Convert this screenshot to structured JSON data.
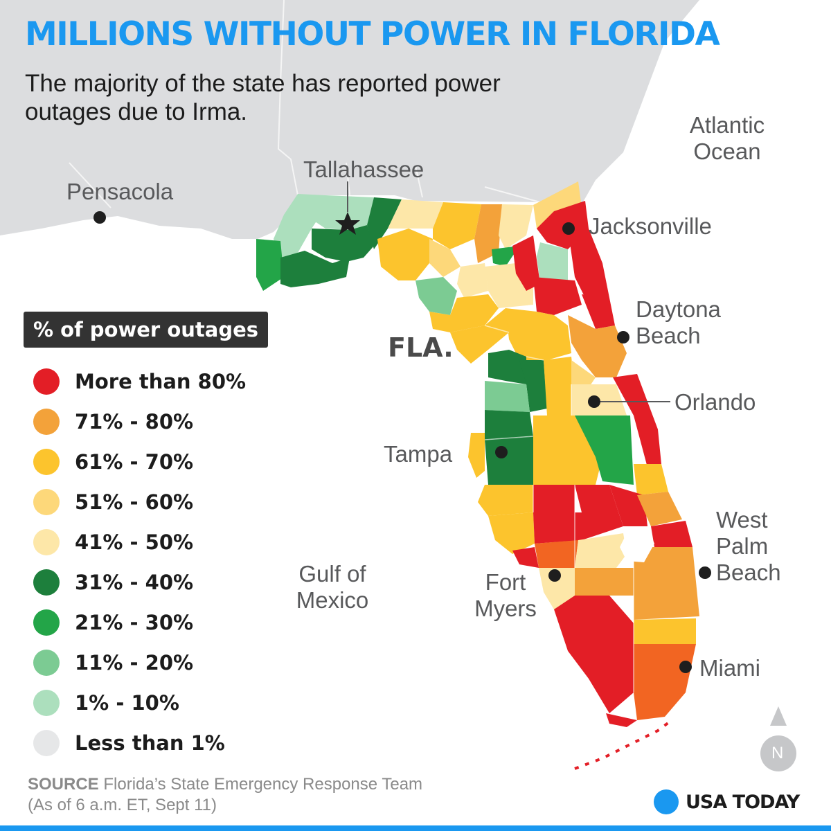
{
  "title": "MILLIONS WITHOUT POWER IN FLORIDA",
  "subtitle": "The majority of the state has reported power outages due to Irma.",
  "map_label": "FLA.",
  "places": {
    "atlantic_ocean": "Atlantic Ocean",
    "gulf_of_mexico": "Gulf of Mexico",
    "tallahassee": "Tallahassee",
    "pensacola": "Pensacola",
    "jacksonville": "Jacksonville",
    "daytona_beach": "Daytona Beach",
    "orlando": "Orlando",
    "tampa": "Tampa",
    "west_palm_beach": "West Palm Beach",
    "fort_myers": "Fort Myers",
    "miami": "Miami"
  },
  "legend": {
    "title": "% of power outages",
    "items": [
      {
        "label": "More than 80%",
        "color": "#e31e26"
      },
      {
        "label": "71% - 80%",
        "color": "#f3a23a"
      },
      {
        "label": "61% - 70%",
        "color": "#fcc42d"
      },
      {
        "label": "51% - 60%",
        "color": "#fdd87a"
      },
      {
        "label": "41% - 50%",
        "color": "#fde7a8"
      },
      {
        "label": "31% - 40%",
        "color": "#1d7f3c"
      },
      {
        "label": "21% - 30%",
        "color": "#23a548"
      },
      {
        "label": "11% - 20%",
        "color": "#7ccb93"
      },
      {
        "label": "1% - 10%",
        "color": "#acdfbd"
      },
      {
        "label": "Less than 1%",
        "color": "#e6e7e8"
      }
    ]
  },
  "compass": {
    "label": "N"
  },
  "source": {
    "keyword": "SOURCE",
    "text": "Florida’s State Emergency Response Team",
    "note": "(As of 6 a.m. ET, Sept 11)"
  },
  "brand": "USA TODAY",
  "colors": {
    "title": "#1a98f0",
    "land_outside": "#dcdddf",
    "water": "#ffffff",
    "miami_area": "#f26522",
    "brand_dot": "#1a98f0"
  }
}
